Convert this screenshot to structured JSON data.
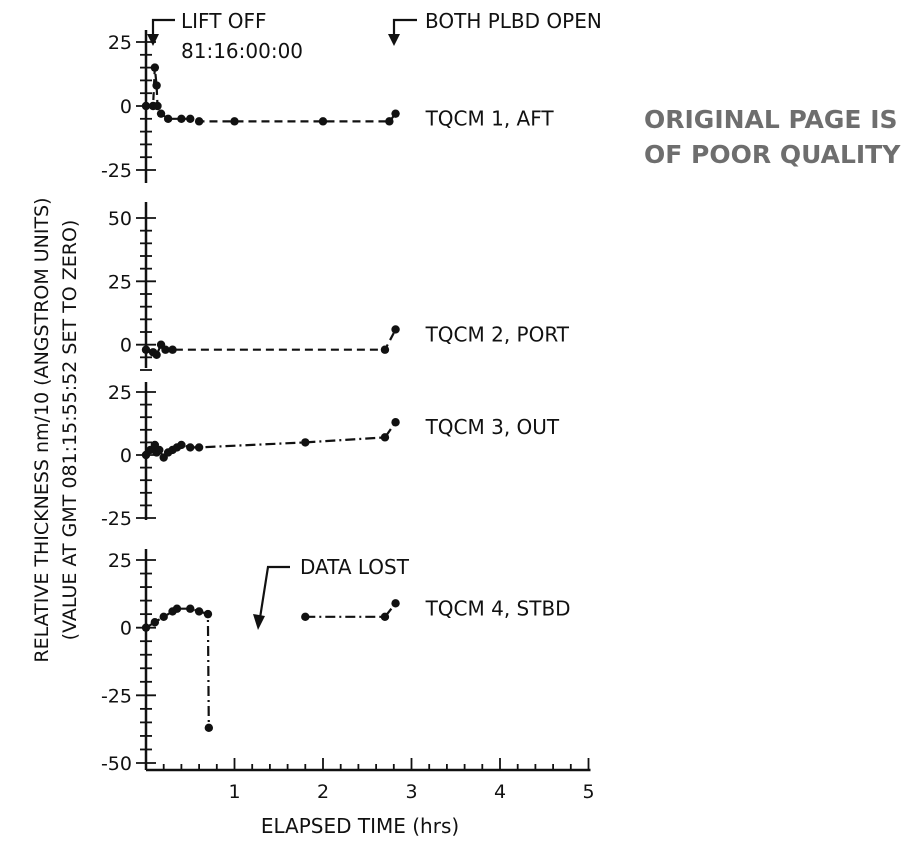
{
  "chart_data": {
    "type": "line",
    "ylabel": "RELATIVE THICKNESS nm/10 (ANGSTROM UNITS)",
    "ylabel2": "(VALUE AT GMT 081:15:55:52 SET TO ZERO)",
    "xlabel": "ELAPSED TIME (hrs)",
    "x_ticks": [
      "1",
      "2",
      "3",
      "4",
      "5"
    ],
    "xlim": [
      0,
      5
    ],
    "grid": false,
    "annotations": {
      "liftoff": "LIFT OFF",
      "liftoff_time": "81:16:00:00",
      "plbd": "BOTH PLBD OPEN",
      "data_lost": "DATA LOST"
    },
    "stamp_line1": "ORIGINAL PAGE IS",
    "stamp_line2": "OF POOR QUALITY",
    "panels": [
      {
        "name": "TQCM 1, AFT",
        "ylim": [
          -25,
          25
        ],
        "y_ticks": [
          "25",
          "0",
          "-25"
        ],
        "points": [
          [
            0.0,
            0
          ],
          [
            0.08,
            0
          ],
          [
            0.1,
            15
          ],
          [
            0.12,
            8
          ],
          [
            0.13,
            0
          ],
          [
            0.17,
            -3
          ],
          [
            0.25,
            -5
          ],
          [
            0.4,
            -5
          ],
          [
            0.5,
            -5
          ],
          [
            0.6,
            -6
          ],
          [
            1.0,
            -6
          ],
          [
            2.0,
            -6
          ],
          [
            2.75,
            -6
          ],
          [
            2.82,
            -3
          ]
        ]
      },
      {
        "name": "TQCM 2, PORT",
        "ylim": [
          -10,
          50
        ],
        "y_ticks": [
          "50",
          "25",
          "0"
        ],
        "points": [
          [
            0.0,
            -2
          ],
          [
            0.08,
            -3
          ],
          [
            0.12,
            -4
          ],
          [
            0.17,
            0
          ],
          [
            0.22,
            -2
          ],
          [
            0.3,
            -2
          ],
          [
            2.7,
            -2
          ],
          [
            2.82,
            6
          ]
        ]
      },
      {
        "name": "TQCM 3, OUT",
        "ylim": [
          -25,
          25
        ],
        "y_ticks": [
          "25",
          "0",
          "-25"
        ],
        "points": [
          [
            0.0,
            0
          ],
          [
            0.05,
            2
          ],
          [
            0.1,
            4
          ],
          [
            0.12,
            1
          ],
          [
            0.15,
            2
          ],
          [
            0.2,
            -1
          ],
          [
            0.25,
            1
          ],
          [
            0.3,
            2
          ],
          [
            0.35,
            3
          ],
          [
            0.4,
            4
          ],
          [
            0.5,
            3
          ],
          [
            0.6,
            3
          ],
          [
            1.8,
            5
          ],
          [
            2.7,
            7
          ],
          [
            2.82,
            13
          ]
        ]
      },
      {
        "name": "TQCM 4, STBD",
        "ylim": [
          -50,
          25
        ],
        "y_ticks": [
          "25",
          "0",
          "-25",
          "-50"
        ],
        "points": [
          [
            0.0,
            0
          ],
          [
            0.1,
            2
          ],
          [
            0.2,
            4
          ],
          [
            0.3,
            6
          ],
          [
            0.35,
            7
          ],
          [
            0.5,
            7
          ],
          [
            0.6,
            6
          ],
          [
            0.7,
            5
          ],
          [
            0.71,
            -37
          ]
        ],
        "points_after_gap": [
          [
            1.8,
            4
          ],
          [
            2.7,
            4
          ],
          [
            2.82,
            9
          ]
        ]
      }
    ]
  }
}
